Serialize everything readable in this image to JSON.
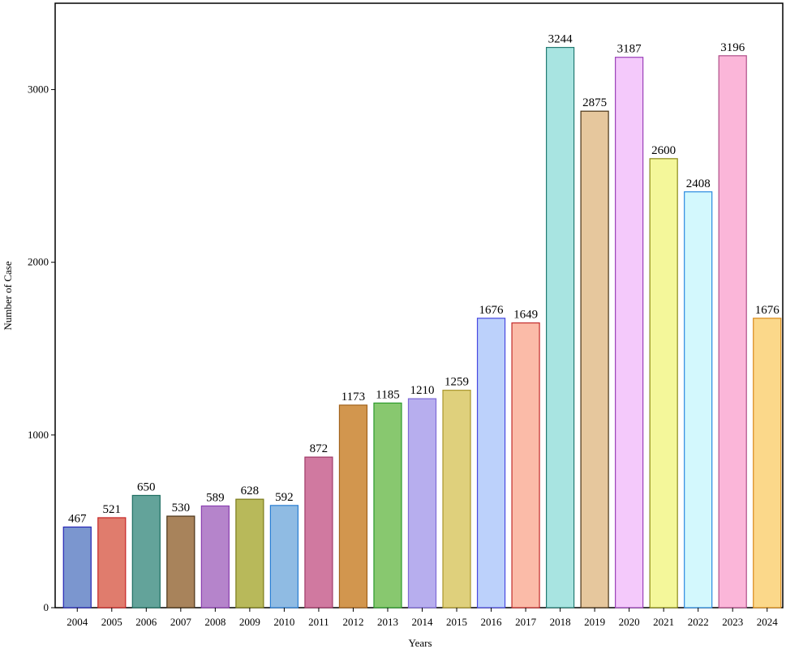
{
  "chart_data": {
    "type": "bar",
    "title": "",
    "xlabel": "Years",
    "ylabel": "Number of Case",
    "ylim": [
      0,
      3500
    ],
    "yticks": [
      0,
      1000,
      2000,
      3000
    ],
    "grid": false,
    "categories": [
      "2004",
      "2005",
      "2006",
      "2007",
      "2008",
      "2009",
      "2010",
      "2011",
      "2012",
      "2013",
      "2014",
      "2015",
      "2016",
      "2017",
      "2018",
      "2019",
      "2020",
      "2021",
      "2022",
      "2023",
      "2024"
    ],
    "values": [
      467,
      521,
      650,
      530,
      589,
      628,
      592,
      872,
      1173,
      1185,
      1210,
      1259,
      1676,
      1649,
      3244,
      2875,
      3187,
      2600,
      2408,
      3196,
      1676
    ],
    "fill_colors": [
      "#7b96cf",
      "#e07c6d",
      "#63a39a",
      "#a8835b",
      "#b584cb",
      "#b8b95a",
      "#8fbbe3",
      "#d079a0",
      "#d2964e",
      "#88c86f",
      "#b7aeee",
      "#dfd07c",
      "#bcd1fb",
      "#fbbba8",
      "#a8e4e1",
      "#e6c79d",
      "#f4c9fb",
      "#f4f79a",
      "#d3f8fd",
      "#fbb6d9",
      "#fbd88a"
    ],
    "stroke_colors": [
      "#2424b5",
      "#c62626",
      "#1e6e62",
      "#4a3418",
      "#8a3fb0",
      "#7a7a1a",
      "#2a7fd4",
      "#a03a68",
      "#a2621c",
      "#2b9a2b",
      "#7e6ad6",
      "#a8962c",
      "#4848e0",
      "#c22a2a",
      "#237a72",
      "#4a3416",
      "#9a40b8",
      "#8a8a16",
      "#2a8ae0",
      "#b04e88",
      "#d98a1a"
    ]
  }
}
